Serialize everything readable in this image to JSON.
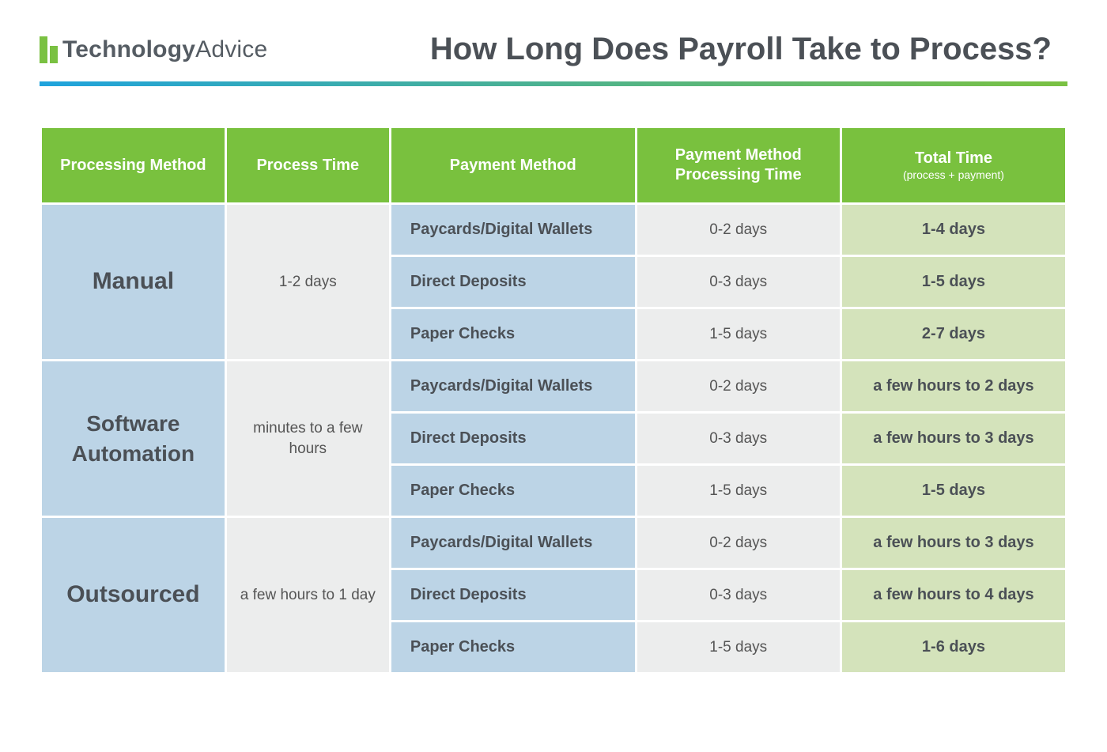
{
  "brand": {
    "name_bold": "Technology",
    "name_light": "Advice",
    "logo_green": "#7ac142"
  },
  "title": "How Long Does Payroll Take to Process?",
  "colors": {
    "header_green": "#79c13e",
    "blue_bg": "#bcd4e6",
    "gray_bg": "#eceded",
    "total_bg": "#d4e3bb",
    "text_dark": "#4b5056",
    "gradient_start": "#1fa3dd",
    "gradient_end": "#7ac142"
  },
  "columns": [
    {
      "label": "Processing Method",
      "width": "18%"
    },
    {
      "label": "Process Time",
      "width": "16%"
    },
    {
      "label": "Payment Method",
      "width": "24%"
    },
    {
      "label": "Payment Method Processing Time",
      "width": "20%"
    },
    {
      "label": "Total Time",
      "sub": "(process + payment)",
      "width": "22%"
    }
  ],
  "groups": [
    {
      "method": "Manual",
      "process_time": "1-2 days",
      "rows": [
        {
          "payment_method": "Paycards/Digital Wallets",
          "pm_time": "0-2 days",
          "total": "1-4 days"
        },
        {
          "payment_method": "Direct Deposits",
          "pm_time": "0-3 days",
          "total": "1-5 days"
        },
        {
          "payment_method": "Paper Checks",
          "pm_time": "1-5 days",
          "total": "2-7 days"
        }
      ]
    },
    {
      "method": "Software Automation",
      "process_time": "minutes to a few hours",
      "rows": [
        {
          "payment_method": "Paycards/Digital Wallets",
          "pm_time": "0-2 days",
          "total": "a few hours to 2 days"
        },
        {
          "payment_method": "Direct Deposits",
          "pm_time": "0-3 days",
          "total": "a few hours to 3 days"
        },
        {
          "payment_method": "Paper Checks",
          "pm_time": "1-5 days",
          "total": "1-5 days"
        }
      ]
    },
    {
      "method": "Outsourced",
      "process_time": "a few hours to 1 day",
      "rows": [
        {
          "payment_method": "Paycards/Digital Wallets",
          "pm_time": "0-2 days",
          "total": "a few hours to 3 days"
        },
        {
          "payment_method": "Direct Deposits",
          "pm_time": "0-3 days",
          "total": "a few hours to 4 days"
        },
        {
          "payment_method": "Paper Checks",
          "pm_time": "1-5 days",
          "total": "1-6 days"
        }
      ]
    }
  ]
}
